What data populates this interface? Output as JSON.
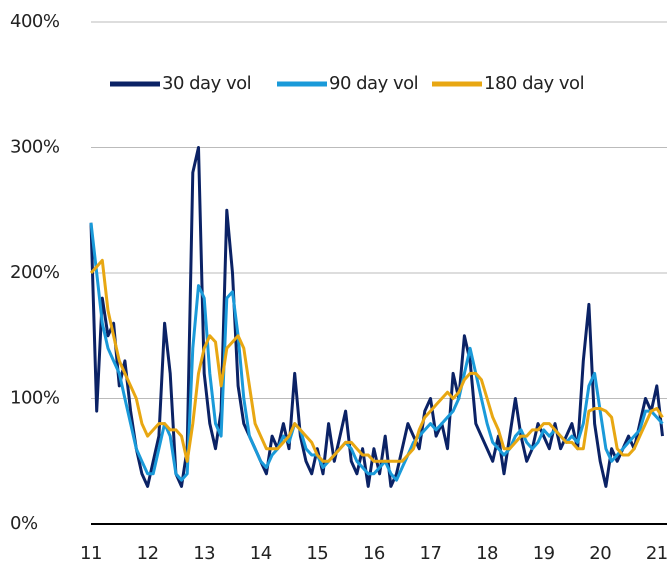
{
  "chart_data": {
    "type": "line",
    "x": [
      11.0,
      11.1,
      11.2,
      11.3,
      11.4,
      11.5,
      11.6,
      11.7,
      11.8,
      11.9,
      12.0,
      12.1,
      12.2,
      12.3,
      12.4,
      12.5,
      12.6,
      12.7,
      12.8,
      12.9,
      13.0,
      13.1,
      13.2,
      13.3,
      13.4,
      13.5,
      13.6,
      13.7,
      13.8,
      13.9,
      14.0,
      14.1,
      14.2,
      14.3,
      14.4,
      14.5,
      14.6,
      14.7,
      14.8,
      14.9,
      15.0,
      15.1,
      15.2,
      15.3,
      15.4,
      15.5,
      15.6,
      15.7,
      15.8,
      15.9,
      16.0,
      16.1,
      16.2,
      16.3,
      16.4,
      16.5,
      16.6,
      16.7,
      16.8,
      16.9,
      17.0,
      17.1,
      17.2,
      17.3,
      17.4,
      17.5,
      17.6,
      17.7,
      17.8,
      17.9,
      18.0,
      18.1,
      18.2,
      18.3,
      18.4,
      18.5,
      18.6,
      18.7,
      18.8,
      18.9,
      19.0,
      19.1,
      19.2,
      19.3,
      19.4,
      19.5,
      19.6,
      19.7,
      19.8,
      19.9,
      20.0,
      20.1,
      20.2,
      20.3,
      20.4,
      20.5,
      20.6,
      20.7,
      20.8,
      20.9,
      21.0,
      21.1
    ],
    "series": [
      {
        "name": "30 day vol",
        "color": "#0b2265",
        "values": [
          240,
          90,
          180,
          150,
          160,
          110,
          130,
          90,
          60,
          40,
          30,
          50,
          70,
          160,
          120,
          40,
          30,
          60,
          280,
          300,
          120,
          80,
          60,
          90,
          250,
          200,
          110,
          80,
          70,
          60,
          50,
          40,
          70,
          60,
          80,
          60,
          120,
          70,
          50,
          40,
          60,
          40,
          80,
          50,
          70,
          90,
          50,
          40,
          60,
          30,
          60,
          40,
          70,
          30,
          40,
          60,
          80,
          70,
          60,
          90,
          100,
          70,
          80,
          60,
          120,
          100,
          150,
          130,
          80,
          70,
          60,
          50,
          70,
          40,
          70,
          100,
          70,
          50,
          60,
          80,
          70,
          60,
          80,
          60,
          70,
          80,
          60,
          130,
          175,
          80,
          50,
          30,
          60,
          50,
          60,
          70,
          60,
          80,
          100,
          90,
          110,
          70
        ]
      },
      {
        "name": "90 day vol",
        "color": "#1a9ad9",
        "values": [
          240,
          200,
          160,
          140,
          130,
          120,
          100,
          80,
          60,
          50,
          40,
          40,
          60,
          80,
          70,
          40,
          35,
          40,
          140,
          190,
          180,
          120,
          80,
          70,
          180,
          185,
          150,
          100,
          70,
          60,
          50,
          45,
          55,
          60,
          70,
          65,
          80,
          75,
          60,
          55,
          55,
          45,
          50,
          55,
          60,
          65,
          60,
          50,
          45,
          40,
          40,
          45,
          50,
          40,
          35,
          45,
          55,
          65,
          70,
          75,
          80,
          75,
          80,
          85,
          90,
          100,
          120,
          140,
          120,
          100,
          80,
          65,
          60,
          55,
          60,
          70,
          75,
          65,
          60,
          65,
          75,
          70,
          75,
          70,
          65,
          70,
          65,
          80,
          110,
          120,
          90,
          60,
          50,
          55,
          60,
          65,
          70,
          75,
          90,
          90,
          85,
          80
        ]
      },
      {
        "name": "180 day vol",
        "color": "#e8a712",
        "values": [
          200,
          205,
          210,
          170,
          150,
          130,
          120,
          110,
          100,
          80,
          70,
          75,
          80,
          80,
          75,
          75,
          70,
          50,
          80,
          120,
          140,
          150,
          145,
          110,
          140,
          145,
          150,
          140,
          110,
          80,
          70,
          60,
          60,
          60,
          65,
          70,
          80,
          75,
          70,
          65,
          55,
          50,
          50,
          55,
          60,
          65,
          65,
          60,
          55,
          55,
          50,
          50,
          50,
          50,
          50,
          50,
          55,
          60,
          75,
          85,
          90,
          95,
          100,
          105,
          100,
          105,
          115,
          120,
          120,
          115,
          100,
          85,
          75,
          60,
          60,
          65,
          70,
          70,
          75,
          75,
          80,
          80,
          75,
          70,
          65,
          65,
          60,
          60,
          90,
          92,
          92,
          90,
          85,
          60,
          55,
          55,
          60,
          70,
          80,
          90,
          92,
          85
        ]
      }
    ],
    "xlim": [
      11,
      21.18
    ],
    "xticks": [
      11,
      12,
      13,
      14,
      15,
      16,
      17,
      18,
      19,
      20,
      21
    ],
    "ylim": [
      0,
      400
    ],
    "yticks": [
      {
        "value": 0,
        "label": "0%"
      },
      {
        "value": 100,
        "label": "100%"
      },
      {
        "value": 200,
        "label": "200%"
      },
      {
        "value": 300,
        "label": "300%"
      },
      {
        "value": 400,
        "label": "400%"
      }
    ],
    "grid": true
  }
}
